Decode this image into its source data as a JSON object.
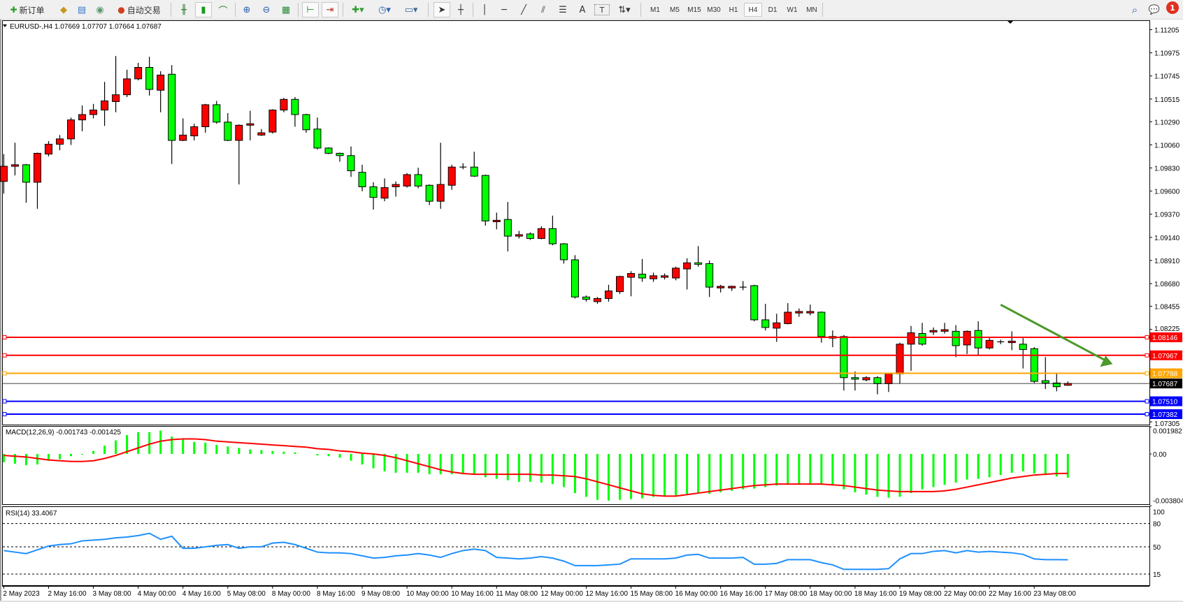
{
  "toolbar": {
    "new_order": "新订单",
    "auto_trading": "自动交易",
    "icons": [
      "new-order-icon",
      "history-center-icon",
      "market-watch-icon",
      "signals-icon",
      "auto-trading-icon",
      "bar-chart-icon",
      "candlestick-icon",
      "line-chart-icon",
      "zoom-in-icon",
      "zoom-out-icon",
      "tile-windows-icon",
      "chart-shift-icon",
      "autoscroll-icon",
      "new-chart-icon",
      "periods-icon",
      "templates-icon",
      "cursor-icon",
      "crosshair-icon",
      "vertical-line-icon",
      "horizontal-line-icon",
      "trendline-icon",
      "equidistant-channel-icon",
      "fibonacci-icon",
      "text-icon",
      "text-label-icon",
      "arrows-icon",
      "search-icon",
      "notifications-icon"
    ],
    "text_tool": "A",
    "label_tool": "T",
    "timeframes": [
      "M1",
      "M5",
      "M15",
      "M30",
      "H1",
      "H4",
      "D1",
      "W1",
      "MN"
    ],
    "active_timeframe": "H4",
    "notification_count": "1"
  },
  "chart": {
    "header": "EURUSD-,H4  1.07669 1.07707 1.07664 1.07687",
    "symbol": "EURUSD-",
    "timeframe": "H4",
    "colors": {
      "bull": "#ff0000",
      "bear": "#00ff00",
      "grid": "#000000",
      "arrow": "#4b9a2a"
    },
    "price_axis": [
      "1.11205",
      "1.10975",
      "1.10745",
      "1.10515",
      "1.10290",
      "1.10060",
      "1.09830",
      "1.09600",
      "1.09370",
      "1.09140",
      "1.08910",
      "1.08680",
      "1.08455",
      "1.08225",
      "1.07305"
    ],
    "levels": [
      {
        "price": "1.08146",
        "color": "#ff0000"
      },
      {
        "price": "1.07967",
        "color": "#ff0000"
      },
      {
        "price": "1.07788",
        "color": "#ffa500"
      },
      {
        "price": "1.07510",
        "color": "#0000ff"
      },
      {
        "price": "1.07382",
        "color": "#0000ff"
      }
    ],
    "current_price": "1.07687",
    "time_axis": [
      "2 May 2023",
      "2 May 16:00",
      "3 May 08:00",
      "4 May 00:00",
      "4 May 16:00",
      "5 May 08:00",
      "8 May 00:00",
      "8 May 16:00",
      "9 May 08:00",
      "10 May 00:00",
      "10 May 16:00",
      "11 May 08:00",
      "12 May 00:00",
      "12 May 16:00",
      "15 May 08:00",
      "16 May 00:00",
      "16 May 16:00",
      "17 May 08:00",
      "18 May 00:00",
      "18 May 16:00",
      "19 May 08:00",
      "22 May 00:00",
      "22 May 16:00",
      "23 May 08:00"
    ]
  },
  "chart_data": [
    {
      "type": "candlestick",
      "title": "EURUSD-,H4",
      "ylim": [
        1.07305,
        1.11205
      ],
      "bars_per_time_label": 4,
      "trend_arrow": {
        "from_bar": 89,
        "from_price": 1.0847,
        "to_bar": 99,
        "to_price": 1.0788,
        "direction": "down"
      },
      "ohlc": [
        [
          1.09696,
          1.09968,
          1.09575,
          1.09847
        ],
        [
          1.09847,
          1.10081,
          1.09756,
          1.09862
        ],
        [
          1.09862,
          1.0987,
          1.09484,
          1.09688
        ],
        [
          1.09688,
          1.09983,
          1.09424,
          1.09976
        ],
        [
          1.09968,
          1.10097,
          1.09945,
          1.10066
        ],
        [
          1.10066,
          1.10157,
          1.10006,
          1.10119
        ],
        [
          1.10119,
          1.10331,
          1.10059,
          1.10308
        ],
        [
          1.10308,
          1.10452,
          1.10195,
          1.10361
        ],
        [
          1.10361,
          1.10467,
          1.10323,
          1.10406
        ],
        [
          1.10406,
          1.10686,
          1.10248,
          1.10497
        ],
        [
          1.1049,
          1.10943,
          1.10384,
          1.10558
        ],
        [
          1.10558,
          1.10807,
          1.10535,
          1.10716
        ],
        [
          1.10716,
          1.10875,
          1.10701,
          1.1083
        ],
        [
          1.1083,
          1.10936,
          1.1055,
          1.10611
        ],
        [
          1.10603,
          1.10792,
          1.10384,
          1.10754
        ],
        [
          1.10762,
          1.10853,
          1.0987,
          1.10104
        ],
        [
          1.10104,
          1.10323,
          1.10097,
          1.10157
        ],
        [
          1.10149,
          1.1027,
          1.10104,
          1.1024
        ],
        [
          1.1024,
          1.10467,
          1.1018,
          1.10459
        ],
        [
          1.10459,
          1.10497,
          1.1027,
          1.10286
        ],
        [
          1.10286,
          1.10376,
          1.10097,
          1.10104
        ],
        [
          1.10104,
          1.10263,
          1.09666,
          1.10255
        ],
        [
          1.10255,
          1.10399,
          1.10104,
          1.1027
        ],
        [
          1.10157,
          1.10217,
          1.10149,
          1.1018
        ],
        [
          1.10187,
          1.10414,
          1.10172,
          1.10406
        ],
        [
          1.10406,
          1.10527,
          1.10384,
          1.10512
        ],
        [
          1.10512,
          1.10535,
          1.1024,
          1.10361
        ],
        [
          1.10361,
          1.10369,
          1.1018,
          1.1021
        ],
        [
          1.10217,
          1.10331,
          1.10013,
          1.10028
        ],
        [
          1.10028,
          1.10036,
          1.09968,
          1.09976
        ],
        [
          1.09976,
          1.09983,
          1.09892,
          1.09953
        ],
        [
          1.09953,
          1.10044,
          1.09741,
          1.09802
        ],
        [
          1.09787,
          1.09862,
          1.09598,
          1.09643
        ],
        [
          1.09643,
          1.09688,
          1.09416,
          1.09537
        ],
        [
          1.0953,
          1.09726,
          1.09499,
          1.09635
        ],
        [
          1.09643,
          1.09696,
          1.09545,
          1.09666
        ],
        [
          1.0965,
          1.09779,
          1.09635,
          1.09764
        ],
        [
          1.09764,
          1.09832,
          1.09628,
          1.0965
        ],
        [
          1.09658,
          1.09666,
          1.09461,
          1.09499
        ],
        [
          1.09499,
          1.10081,
          1.09424,
          1.09666
        ],
        [
          1.09658,
          1.09862,
          1.09613,
          1.09839
        ],
        [
          1.09839,
          1.09877,
          1.09817,
          1.09839
        ],
        [
          1.09839,
          1.09991,
          1.09741,
          1.09749
        ],
        [
          1.09756,
          1.09764,
          1.09257,
          1.09303
        ],
        [
          1.09295,
          1.09386,
          1.0922,
          1.0931
        ],
        [
          1.09318,
          1.09492,
          1.09,
          1.09152
        ],
        [
          1.09152,
          1.09204,
          1.09129,
          1.09167
        ],
        [
          1.09174,
          1.09189,
          1.09114,
          1.09129
        ],
        [
          1.09129,
          1.0925,
          1.09121,
          1.09227
        ],
        [
          1.09227,
          1.09356,
          1.09061,
          1.09076
        ],
        [
          1.09076,
          1.09083,
          1.08879,
          1.08917
        ],
        [
          1.08917,
          1.08963,
          1.08532,
          1.08547
        ],
        [
          1.08547,
          1.08562,
          1.08501,
          1.08524
        ],
        [
          1.08501,
          1.08547,
          1.08479,
          1.08532
        ],
        [
          1.08532,
          1.08668,
          1.08501,
          1.08607
        ],
        [
          1.086,
          1.08758,
          1.08577,
          1.08751
        ],
        [
          1.08743,
          1.08804,
          1.08554,
          1.08781
        ],
        [
          1.08774,
          1.08925,
          1.08698,
          1.08736
        ],
        [
          1.08728,
          1.08789,
          1.08698,
          1.08758
        ],
        [
          1.08743,
          1.08781,
          1.08721,
          1.08758
        ],
        [
          1.08736,
          1.08849,
          1.08713,
          1.08834
        ],
        [
          1.08826,
          1.08932,
          1.08622,
          1.08887
        ],
        [
          1.08887,
          1.09053,
          1.08849,
          1.08872
        ],
        [
          1.08879,
          1.0891,
          1.08547,
          1.08645
        ],
        [
          1.08637,
          1.08668,
          1.08592,
          1.08653
        ],
        [
          1.08637,
          1.0866,
          1.08607,
          1.08653
        ],
        [
          1.08645,
          1.08705,
          1.08615,
          1.08645
        ],
        [
          1.0866,
          1.08668,
          1.08305,
          1.0832
        ],
        [
          1.0832,
          1.08479,
          1.08214,
          1.08244
        ],
        [
          1.08237,
          1.0838,
          1.08101,
          1.0829
        ],
        [
          1.08282,
          1.08486,
          1.08275,
          1.08396
        ],
        [
          1.08388,
          1.08433,
          1.0835,
          1.08403
        ],
        [
          1.08388,
          1.08471,
          1.08365,
          1.08403
        ],
        [
          1.08396,
          1.08403,
          1.08093,
          1.08154
        ],
        [
          1.08154,
          1.08214,
          1.08048,
          1.08138
        ],
        [
          1.08154,
          1.08169,
          1.07617,
          1.07745
        ],
        [
          1.07745,
          1.07806,
          1.07617,
          1.0773
        ],
        [
          1.07723,
          1.0776,
          1.07708,
          1.07745
        ],
        [
          1.07745,
          1.0776,
          1.07579,
          1.07685
        ],
        [
          1.07685,
          1.07783,
          1.07602,
          1.07783
        ],
        [
          1.07783,
          1.08093,
          1.07685,
          1.08078
        ],
        [
          1.08078,
          1.08259,
          1.07813,
          1.08191
        ],
        [
          1.08184,
          1.0829,
          1.08063,
          1.08078
        ],
        [
          1.08199,
          1.08244,
          1.08169,
          1.08214
        ],
        [
          1.08206,
          1.0829,
          1.08184,
          1.08222
        ],
        [
          1.08206,
          1.08267,
          1.07949,
          1.08063
        ],
        [
          1.0807,
          1.08214,
          1.0798,
          1.08206
        ],
        [
          1.08214,
          1.08305,
          1.07965,
          1.0804
        ],
        [
          1.0804,
          1.08138,
          1.08025,
          1.08116
        ],
        [
          1.08101,
          1.08123,
          1.08078,
          1.08101
        ],
        [
          1.08093,
          1.08206,
          1.08018,
          1.08108
        ],
        [
          1.08078,
          1.08138,
          1.07836,
          1.08025
        ],
        [
          1.08033,
          1.08048,
          1.07692,
          1.07708
        ],
        [
          1.07715,
          1.07949,
          1.07632,
          1.07692
        ],
        [
          1.07692,
          1.07791,
          1.07609,
          1.07655
        ],
        [
          1.07669,
          1.07707,
          1.07664,
          1.07687
        ]
      ]
    },
    {
      "type": "bar",
      "title": "MACD(12,26,9) -0.001743 -0.001425",
      "ylim": [
        -0.003804,
        0.001982
      ],
      "axis_labels": [
        "0.001982",
        "0.00",
        "-0.003804"
      ],
      "series": [
        {
          "name": "MACD",
          "type": "bar",
          "color": "#00ff00",
          "values": [
            -0.000607,
            -0.000718,
            -0.000828,
            -0.000773,
            -0.000497,
            -0.000386,
            -0.000166,
            -5.5e-05,
            0.000221,
            0.000607,
            0.000994,
            0.00138,
            0.001601,
            0.001601,
            0.001711,
            0.00127,
            0.001049,
            0.000883,
            0.000828,
            0.000662,
            0.000552,
            0.000442,
            0.000331,
            0.000276,
            0.000221,
            0.000166,
            0.00011,
            0.0,
            -0.00011,
            -0.000166,
            -0.000276,
            -0.000497,
            -0.000773,
            -0.001049,
            -0.00127,
            -0.00138,
            -0.00138,
            -0.00138,
            -0.00149,
            -0.00149,
            -0.00149,
            -0.00149,
            -0.00149,
            -0.001711,
            -0.001822,
            -0.001932,
            -0.002042,
            -0.002042,
            -0.002098,
            -0.002208,
            -0.002429,
            -0.00287,
            -0.003146,
            -0.003367,
            -0.003422,
            -0.003367,
            -0.003312,
            -0.003257,
            -0.003146,
            -0.003091,
            -0.003036,
            -0.002926,
            -0.00287,
            -0.002926,
            -0.002815,
            -0.002705,
            -0.002594,
            -0.002539,
            -0.002429,
            -0.002318,
            -0.002263,
            -0.002208,
            -0.002208,
            -0.002208,
            -0.002318,
            -0.002594,
            -0.002815,
            -0.002981,
            -0.003146,
            -0.003202,
            -0.003146,
            -0.00287,
            -0.002594,
            -0.002429,
            -0.002263,
            -0.002098,
            -0.001877,
            -0.001822,
            -0.001711,
            -0.001546,
            -0.00138,
            -0.00127,
            -0.001435,
            -0.001546,
            -0.001656,
            -0.001743
          ]
        },
        {
          "name": "Signal",
          "type": "line",
          "color": "#ff0000",
          "values": [
            -0.00011,
            -0.000166,
            -0.000221,
            -0.000331,
            -0.000442,
            -0.000497,
            -0.000552,
            -0.000552,
            -0.000497,
            -0.000331,
            -0.00011,
            0.000166,
            0.000442,
            0.000718,
            0.000938,
            0.001049,
            0.001104,
            0.001104,
            0.001049,
            0.000938,
            0.000883,
            0.000828,
            0.000773,
            0.000718,
            0.000662,
            0.000607,
            0.000552,
            0.000497,
            0.000386,
            0.000331,
            0.000221,
            0.000166,
            5.5e-05,
            0.0,
            -0.00011,
            -0.000276,
            -0.000497,
            -0.000718,
            -0.000938,
            -0.001159,
            -0.001325,
            -0.001435,
            -0.00149,
            -0.00149,
            -0.00149,
            -0.00149,
            -0.00149,
            -0.00149,
            -0.001546,
            -0.001546,
            -0.001601,
            -0.001656,
            -0.001822,
            -0.002042,
            -0.002263,
            -0.002484,
            -0.002705,
            -0.002926,
            -0.003036,
            -0.003091,
            -0.003091,
            -0.002981,
            -0.00287,
            -0.00276,
            -0.00265,
            -0.002539,
            -0.002429,
            -0.002318,
            -0.002263,
            -0.002208,
            -0.002208,
            -0.002208,
            -0.002208,
            -0.002208,
            -0.002263,
            -0.002318,
            -0.002429,
            -0.002539,
            -0.00265,
            -0.002705,
            -0.00276,
            -0.00276,
            -0.00276,
            -0.00276,
            -0.002705,
            -0.002594,
            -0.002429,
            -0.002263,
            -0.002098,
            -0.001932,
            -0.001766,
            -0.001656,
            -0.001546,
            -0.00149,
            -0.001435,
            -0.001425
          ]
        }
      ]
    },
    {
      "type": "line",
      "title": "RSI(14) 33.4067",
      "ylim": [
        0,
        100
      ],
      "levels": [
        80,
        50,
        15
      ],
      "axis_labels": [
        "100",
        "80",
        "50",
        "15"
      ],
      "series": [
        {
          "name": "RSI(14)",
          "color": "#1e90ff",
          "values": [
            45.2,
            43.2,
            41.3,
            46.1,
            51.0,
            52.9,
            53.9,
            57.7,
            58.7,
            59.7,
            61.6,
            62.6,
            64.5,
            67.4,
            59.7,
            63.6,
            48.1,
            48.1,
            50.0,
            51.9,
            52.9,
            48.1,
            50.0,
            50.0,
            54.8,
            55.8,
            52.9,
            48.1,
            43.2,
            42.3,
            42.3,
            41.3,
            38.4,
            35.5,
            36.4,
            38.4,
            39.4,
            41.3,
            39.4,
            36.4,
            41.3,
            45.2,
            47.1,
            45.2,
            36.4,
            35.5,
            34.5,
            35.5,
            37.4,
            35.5,
            31.6,
            25.8,
            25.8,
            25.8,
            26.8,
            27.7,
            34.5,
            34.5,
            34.5,
            34.5,
            35.5,
            39.4,
            40.3,
            35.5,
            35.5,
            35.5,
            36.4,
            27.7,
            27.7,
            28.7,
            33.5,
            33.5,
            33.5,
            29.7,
            26.8,
            21.0,
            21.0,
            21.0,
            21.0,
            21.9,
            34.5,
            41.3,
            41.3,
            44.2,
            45.2,
            42.3,
            45.2,
            43.2,
            44.2,
            43.2,
            42.3,
            40.3,
            34.5,
            33.5,
            33.5,
            33.4067
          ]
        }
      ]
    }
  ]
}
